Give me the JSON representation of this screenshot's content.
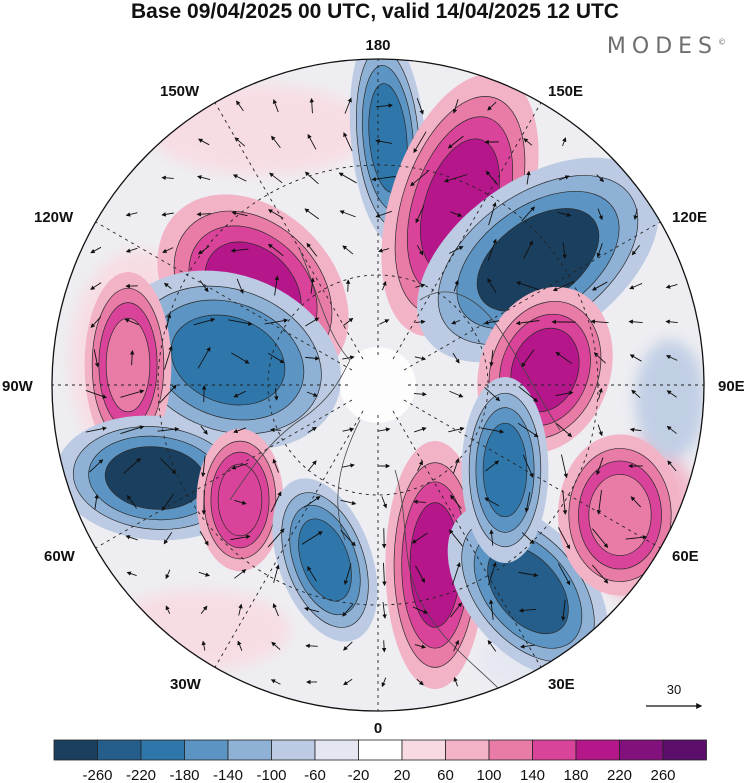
{
  "title": "Base 09/04/2025 00 UTC, valid 14/04/2025 12 UTC",
  "brand": "MODES",
  "brand_mark": "©",
  "longitude_labels": {
    "top": "180",
    "bottom": "0",
    "left": "90W",
    "right": "90E",
    "upper_left_1": "150W",
    "upper_left_2": "120W",
    "upper_right_1": "150E",
    "upper_right_2": "120E",
    "lower_left_1": "60W",
    "lower_left_2": "30W",
    "lower_right_1": "60E",
    "lower_right_2": "30E"
  },
  "vector_reference": {
    "label": "30"
  },
  "colorbar": {
    "labels": [
      "-260",
      "-220",
      "-180",
      "-140",
      "-100",
      "-60",
      "-20",
      "20",
      "60",
      "100",
      "140",
      "180",
      "220",
      "260"
    ],
    "colors": [
      "#1b3f5e",
      "#255e8a",
      "#2f77ab",
      "#5c95c4",
      "#8fb1d6",
      "#bccbe3",
      "#e4e6f1",
      "#ffffff",
      "#f8dbe2",
      "#f2b3c6",
      "#e97ba7",
      "#d9449a",
      "#b5168a",
      "#82117e",
      "#5b0f6b"
    ]
  },
  "anomalies": [
    {
      "name": "blue-north-pacific",
      "color": "#2f77ab",
      "sign": "negative"
    },
    {
      "name": "purple-east-siberia",
      "color": "#b5168a",
      "sign": "positive"
    },
    {
      "name": "navy-east-asia",
      "color": "#1b3f5e",
      "sign": "negative"
    },
    {
      "name": "purple-alaska",
      "color": "#b5168a",
      "sign": "positive"
    },
    {
      "name": "blue-canada",
      "color": "#2f77ab",
      "sign": "negative"
    },
    {
      "name": "pink-west-canada",
      "color": "#e97ba7",
      "sign": "positive"
    },
    {
      "name": "navy-north-atlantic",
      "color": "#1b3f5e",
      "sign": "negative"
    },
    {
      "name": "pink-mid-atlantic",
      "color": "#d9449a",
      "sign": "positive"
    },
    {
      "name": "blue-iceland",
      "color": "#2f77ab",
      "sign": "negative"
    },
    {
      "name": "purple-europe",
      "color": "#b5168a",
      "sign": "positive"
    },
    {
      "name": "navy-eastern-europe",
      "color": "#255e8a",
      "sign": "negative"
    },
    {
      "name": "purple-central-siberia",
      "color": "#b5168a",
      "sign": "positive"
    },
    {
      "name": "blue-kara-sea",
      "color": "#2f77ab",
      "sign": "negative"
    },
    {
      "name": "pink-central-asia",
      "color": "#e97ba7",
      "sign": "positive"
    }
  ]
}
